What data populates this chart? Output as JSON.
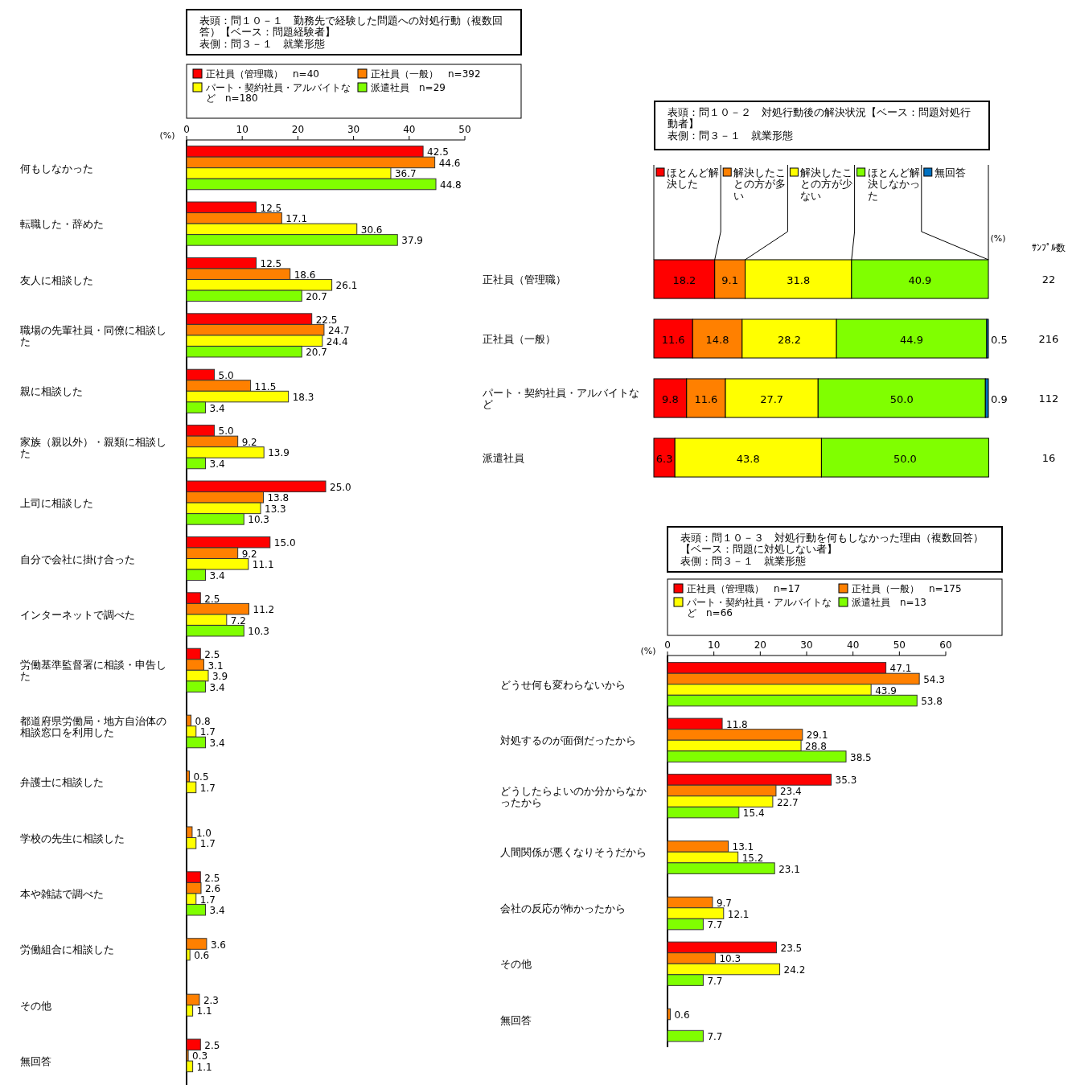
{
  "chart_data": [
    {
      "type": "bar",
      "orientation": "horizontal",
      "title": "表頭：問１０－１　勤務先で経験した問題への対処行動（複数回答）【ベース：問題経験者】",
      "subtitle": "表側：問３－１　就業形態",
      "xlabel": "(%)",
      "categories": [
        "何もしなかった",
        "転職した・辞めた",
        "友人に相談した",
        "職場の先輩社員・同僚に相談した",
        "親に相談した",
        "家族（親以外）・親類に相談した",
        "上司に相談した",
        "自分で会社に掛け合った",
        "インターネットで調べた",
        "労働基準監督署に相談・申告した",
        "都道府県労働局・地方自治体の相談窓口を利用した",
        "弁護士に相談した",
        "学校の先生に相談した",
        "本や雑誌で調べた",
        "労働組合に相談した",
        "その他",
        "無回答"
      ],
      "series": [
        {
          "name": "正社員（管理職）　n=40",
          "color": "#ff0000",
          "values": [
            42.5,
            12.5,
            12.5,
            22.5,
            5.0,
            5.0,
            25.0,
            15.0,
            2.5,
            2.5,
            null,
            null,
            null,
            2.5,
            null,
            null,
            2.5
          ],
          "value_labels": [
            "42.5",
            "12.5",
            "12.5",
            "22.5",
            "5.0",
            "5.0",
            "25.0",
            "15.0",
            "2.5",
            "2.5",
            null,
            null,
            null,
            "2.5",
            null,
            null,
            "2.5"
          ]
        },
        {
          "name": "正社員（一般）　n=392",
          "color": "#ff8000",
          "values": [
            44.6,
            17.1,
            18.6,
            24.7,
            11.5,
            9.2,
            13.8,
            9.2,
            11.2,
            3.1,
            0.8,
            0.5,
            1.0,
            2.6,
            3.6,
            2.3,
            0.3
          ],
          "value_labels": [
            "44.6",
            "17.1",
            "18.6",
            "24.7",
            "11.5",
            "9.2",
            "13.8",
            "9.2",
            "11.2",
            "3.1",
            "0.8",
            "0.5",
            "1.0",
            "2.6",
            "3.6",
            "2.3",
            "0.3"
          ]
        },
        {
          "name": "パート・契約社員・アルバイトなど　n=180",
          "color": "#ffff00",
          "values": [
            36.7,
            30.6,
            26.1,
            24.4,
            18.3,
            13.9,
            13.3,
            11.1,
            7.2,
            3.9,
            1.7,
            1.7,
            1.7,
            1.7,
            0.6,
            1.1,
            1.1
          ],
          "value_labels": [
            "36.7",
            "30.6",
            "26.1",
            "24.4",
            "18.3",
            "13.9",
            "13.3",
            "11.1",
            "7.2",
            "3.9",
            "1.7",
            "1.7",
            "1.7",
            "1.7",
            "0.6",
            "1.1",
            "1.1"
          ]
        },
        {
          "name": "派遣社員　n=29",
          "color": "#80ff00",
          "values": [
            44.8,
            37.9,
            20.7,
            20.7,
            3.4,
            3.4,
            10.3,
            3.4,
            10.3,
            3.4,
            3.4,
            null,
            null,
            3.4,
            null,
            null,
            null
          ],
          "value_labels": [
            "44.8",
            "37.9",
            "20.7",
            "20.7",
            "3.4",
            "3.4",
            "10.3",
            "3.4",
            "10.3",
            "3.4",
            "3.4",
            null,
            null,
            "3.4",
            null,
            null,
            null
          ]
        }
      ],
      "xlim": [
        0,
        50
      ],
      "xticks": [
        0,
        10,
        20,
        30,
        40,
        50
      ],
      "legend": "top"
    },
    {
      "type": "bar",
      "orientation": "horizontal",
      "stacked": true,
      "title": "表頭：問１０－２　対処行動後の解決状況【ベース：問題対処行動者】",
      "subtitle": "表側：問３－１　就業形態",
      "xlabel": "(%)",
      "y2label": "ｻﾝﾌﾟﾙ数",
      "categories": [
        "正社員（管理職）",
        "正社員（一般）",
        "パート・契約社員・アルバイトなど",
        "派遣社員"
      ],
      "series": [
        {
          "name": "ほとんど解決した",
          "color": "#ff0000",
          "values": [
            18.2,
            11.6,
            9.8,
            6.3
          ],
          "value_labels": [
            "18.2",
            "11.6",
            "9.8",
            "6.3"
          ]
        },
        {
          "name": "解決したことの方が多い",
          "color": "#ff8000",
          "values": [
            9.1,
            14.8,
            11.6,
            null
          ],
          "value_labels": [
            "9.1",
            "14.8",
            "11.6",
            null
          ]
        },
        {
          "name": "解決したことの方が少ない",
          "color": "#ffff00",
          "values": [
            31.8,
            28.2,
            27.7,
            43.8
          ],
          "value_labels": [
            "31.8",
            "28.2",
            "27.7",
            "43.8"
          ]
        },
        {
          "name": "ほとんど解決しなかった",
          "color": "#80ff00",
          "values": [
            40.9,
            44.9,
            50.0,
            50.0
          ],
          "value_labels": [
            "40.9",
            "44.9",
            "50.0",
            "50.0"
          ]
        },
        {
          "name": "無回答",
          "color": "#0070c0",
          "values": [
            null,
            0.5,
            0.9,
            null
          ],
          "value_labels": [
            null,
            "0.5",
            "0.9",
            null
          ]
        }
      ],
      "xlim": [
        0,
        100
      ],
      "legend": "top",
      "annotations": [
        "22",
        "216",
        "112",
        "16"
      ]
    },
    {
      "type": "bar",
      "orientation": "horizontal",
      "title": "表頭：問１０－３　対処行動を何もしなかった理由（複数回答）【ベース：問題に対処しない者】",
      "subtitle": "表側：問３－１　就業形態",
      "xlabel": "(%)",
      "categories": [
        "どうせ何も変わらないから",
        "対処するのが面倒だったから",
        "どうしたらよいのか分からなかったから",
        "人間関係が悪くなりそうだから",
        "会社の反応が怖かったから",
        "その他",
        "無回答"
      ],
      "series": [
        {
          "name": "正社員（管理職）　n=17",
          "color": "#ff0000",
          "values": [
            47.1,
            11.8,
            35.3,
            null,
            null,
            23.5,
            null
          ],
          "value_labels": [
            "47.1",
            "11.8",
            "35.3",
            null,
            null,
            "23.5",
            null
          ]
        },
        {
          "name": "正社員（一般）　n=175",
          "color": "#ff8000",
          "values": [
            54.3,
            29.1,
            23.4,
            13.1,
            9.7,
            10.3,
            0.6
          ],
          "value_labels": [
            "54.3",
            "29.1",
            "23.4",
            "13.1",
            "9.7",
            "10.3",
            "0.6"
          ]
        },
        {
          "name": "パート・契約社員・アルバイトなど　n=66",
          "color": "#ffff00",
          "values": [
            43.9,
            28.8,
            22.7,
            15.2,
            12.1,
            24.2,
            null
          ],
          "value_labels": [
            "43.9",
            "28.8",
            "22.7",
            "15.2",
            "12.1",
            "24.2",
            null
          ]
        },
        {
          "name": "派遣社員　n=13",
          "color": "#80ff00",
          "values": [
            53.8,
            38.5,
            15.4,
            23.1,
            7.7,
            7.7,
            7.7
          ],
          "value_labels": [
            "53.8",
            "38.5",
            "15.4",
            "23.1",
            "7.7",
            "7.7",
            "7.7"
          ]
        }
      ],
      "xlim": [
        0,
        60
      ],
      "xticks": [
        0,
        10,
        20,
        30,
        40,
        50,
        60
      ],
      "legend": "top"
    }
  ]
}
